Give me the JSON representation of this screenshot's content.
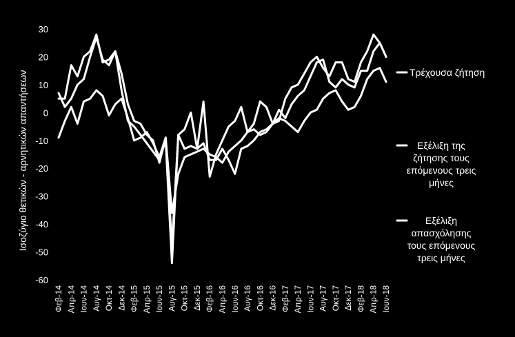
{
  "chart_data": {
    "type": "line",
    "ylabel": "Ισοζύγιο θετικών - αρνητικών απαντήσεων",
    "ylim": [
      -60,
      30
    ],
    "yticks": [
      "30",
      "20",
      "10",
      "0",
      "-10",
      "-20",
      "-30",
      "-40",
      "-50",
      "-60"
    ],
    "xtick_labels": [
      "Φεβ-14",
      "Απρ-14",
      "Ιουν-14",
      "Αυγ-14",
      "Οκτ-14",
      "Δεκ-14",
      "Φεβ-15",
      "Απρ-15",
      "Ιουν-15",
      "Αυγ-15",
      "Οκτ-15",
      "Δεκ-15",
      "Φεβ-16",
      "Απρ-16",
      "Ιουν-16",
      "Αυγ-16",
      "Οκτ-16",
      "Δεκ-16",
      "Φεβ-17",
      "Απρ-17",
      "Ιουν-17",
      "Αυγ-17",
      "Οκτ-17",
      "Δεκ-17",
      "Φεβ-18",
      "Απρ-18",
      "Ιουν-18"
    ],
    "x": [
      "Φεβ-14",
      "Μαρ-14",
      "Απρ-14",
      "Μαϊ-14",
      "Ιουν-14",
      "Ιουλ-14",
      "Αυγ-14",
      "Σεπ-14",
      "Οκτ-14",
      "Νοε-14",
      "Δεκ-14",
      "Ιαν-15",
      "Φεβ-15",
      "Μαρ-15",
      "Απρ-15",
      "Μαϊ-15",
      "Ιουν-15",
      "Ιουλ-15",
      "Αυγ-15",
      "Σεπ-15",
      "Οκτ-15",
      "Νοε-15",
      "Δεκ-15",
      "Ιαν-16",
      "Φεβ-16",
      "Μαρ-16",
      "Απρ-16",
      "Μαϊ-16",
      "Ιουν-16",
      "Ιουλ-16",
      "Αυγ-16",
      "Σεπ-16",
      "Οκτ-16",
      "Νοε-16",
      "Δεκ-16",
      "Ιαν-17",
      "Φεβ-17",
      "Μαρ-17",
      "Απρ-17",
      "Μαϊ-17",
      "Ιουν-17",
      "Ιουλ-17",
      "Αυγ-17",
      "Σεπ-17",
      "Οκτ-17",
      "Νοε-17",
      "Δεκ-17",
      "Ιαν-18",
      "Φεβ-18",
      "Μαρ-18",
      "Απρ-18",
      "Μαϊ-18",
      "Ιουν-18"
    ],
    "series": [
      {
        "name": "Τρέχουσα ζήτηση",
        "values": [
          -9,
          -3,
          2,
          -4,
          4,
          5,
          8,
          6,
          -1,
          3,
          5,
          -2,
          -10,
          -9,
          -7,
          -11,
          -16,
          -9,
          -36,
          -22,
          -16,
          -15,
          -14,
          -13,
          -15,
          -16,
          -18,
          -14,
          -12,
          -10,
          -7,
          -6,
          -8,
          -7,
          -4,
          -2,
          -3,
          -5,
          -7,
          -3,
          0,
          1,
          5,
          7,
          8,
          4,
          1,
          2,
          6,
          12,
          15,
          16,
          11
        ]
      },
      {
        "name": "Εξέλιξη της ζήτησης τους επόμενους τρεις μήνες",
        "values": [
          7,
          2,
          5,
          10,
          12,
          20,
          27,
          19,
          17,
          22,
          14,
          3,
          -3,
          -4,
          -8,
          -10,
          -18,
          -9,
          -48,
          -8,
          -6,
          0,
          -13,
          -11,
          -17,
          -17,
          -13,
          -17,
          -22,
          -13,
          -12,
          -10,
          -7,
          -6,
          -4,
          1,
          -2,
          3,
          6,
          8,
          13,
          18,
          19,
          11,
          9,
          12,
          10,
          9,
          15,
          15,
          22,
          25,
          20
        ]
      },
      {
        "name": "Εξέλιξη απασχόλησης τους επόμενους τρεις μήνες",
        "values": [
          5,
          5,
          17,
          13,
          20,
          22,
          28,
          18,
          19,
          22,
          8,
          -3,
          -5,
          -8,
          -11,
          -14,
          -17,
          -10,
          -54,
          -8,
          -13,
          -12,
          -13,
          4,
          -23,
          -15,
          -10,
          -5,
          -3,
          2,
          -7,
          -4,
          4,
          2,
          -4,
          -3,
          5,
          9,
          10,
          14,
          18,
          20,
          16,
          13,
          18,
          18,
          12,
          11,
          18,
          22,
          28,
          25,
          20
        ]
      }
    ],
    "legend": [
      "Τρέχουσα ζήτηση",
      "Εξέλιξη της ζήτησης τους επόμενους τρεις μήνες",
      "Εξέλιξη απασχόλησης τους επόμενους τρεις μήνες"
    ],
    "legend_lines": [
      [
        "Τρέχουσα ζήτηση"
      ],
      [
        "Εξέλιξη της",
        "ζήτησης τους",
        "επόμενους τρεις",
        "μήνες"
      ],
      [
        "Εξέλιξη",
        "απασχόλησης",
        "τους επόμενους",
        "τρεις μήνες"
      ]
    ],
    "legend_position": "right",
    "grid": false
  },
  "colors": {
    "background": "#000000",
    "line": "#ffffff",
    "text": "#ffffff"
  }
}
